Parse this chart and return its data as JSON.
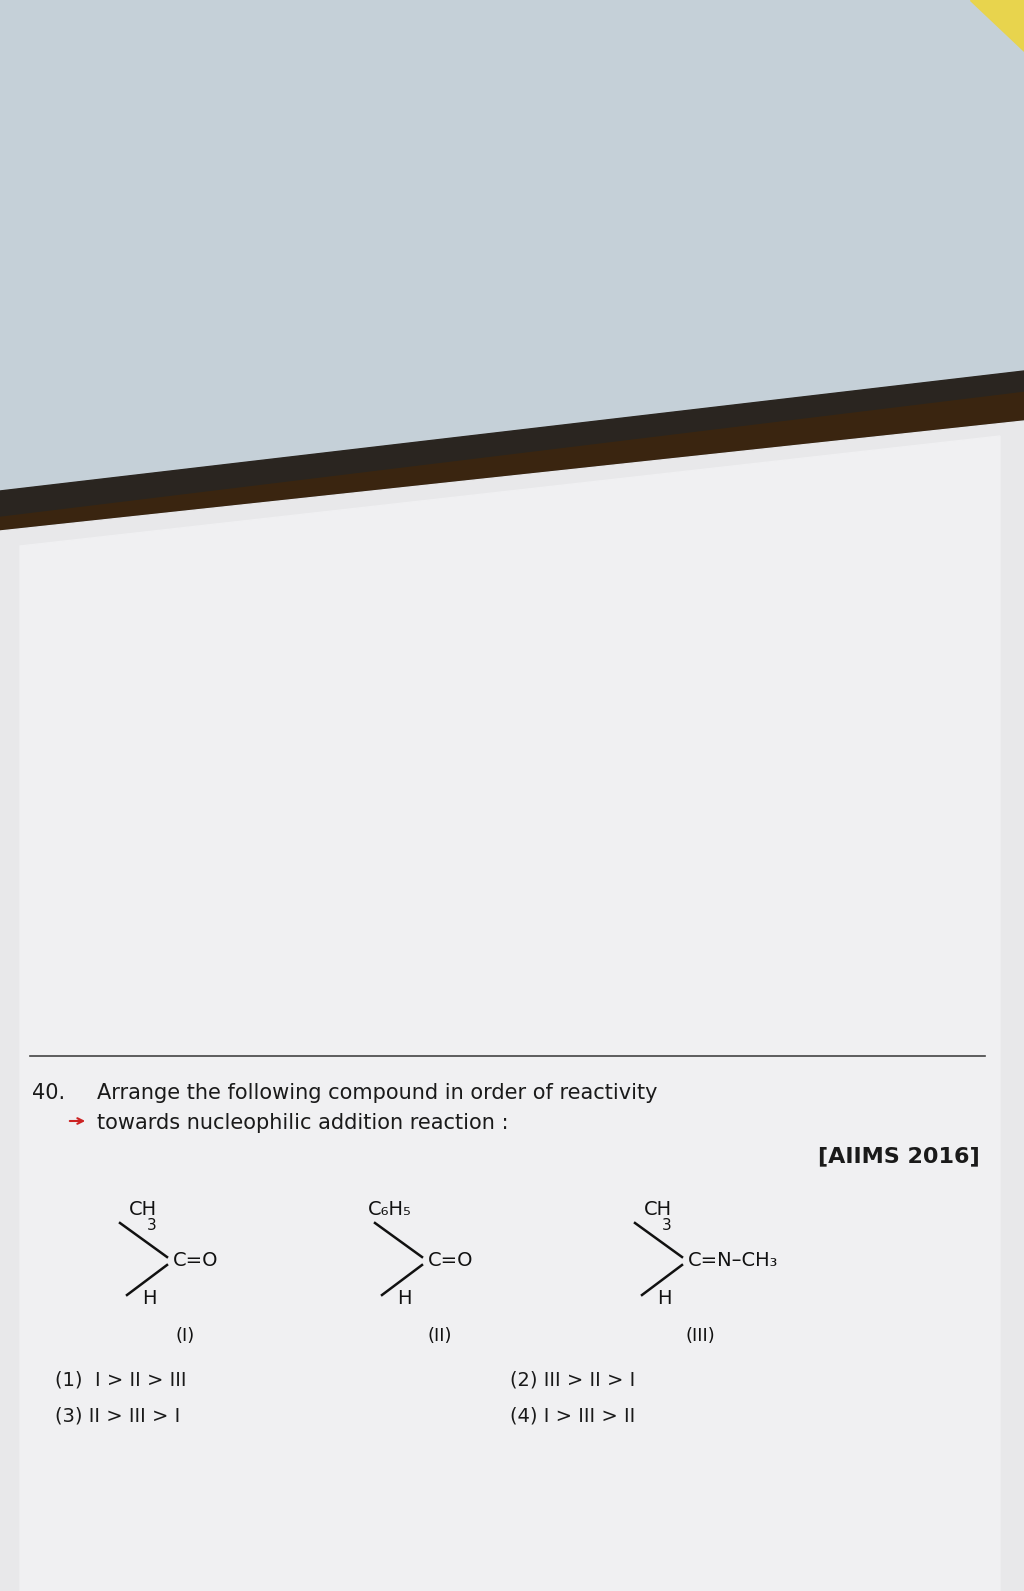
{
  "bg_blue_grey": "#c5d0d8",
  "bg_wood_dark": "#3a2510",
  "bg_wood_light": "#b8935a",
  "paper_white": "#e8e8ea",
  "paper_white2": "#f0f0f2",
  "question_number": "40.",
  "question_text_line1": "Arrange the following compound in order of reactivity",
  "question_text_line2": "towards nucleophilic addition reaction :",
  "source_tag": "[AIIMS 2016]",
  "options_left": [
    "(1)  I > II > III",
    "(3) II > III > I"
  ],
  "options_right": [
    "(2) III > II > I",
    "(4) I > III > II"
  ],
  "text_color": "#1a1a1a",
  "red_arrow_color": "#cc2222",
  "line_color": "#444444",
  "struct_line_color": "#111111",
  "font_size_q": 15,
  "font_size_source": 16,
  "font_size_struct": 14,
  "font_size_opt": 14,
  "struct_sub_size": 11,
  "yellow_tab_color": "#e8d44d",
  "shadow_color": "#1a0f05"
}
